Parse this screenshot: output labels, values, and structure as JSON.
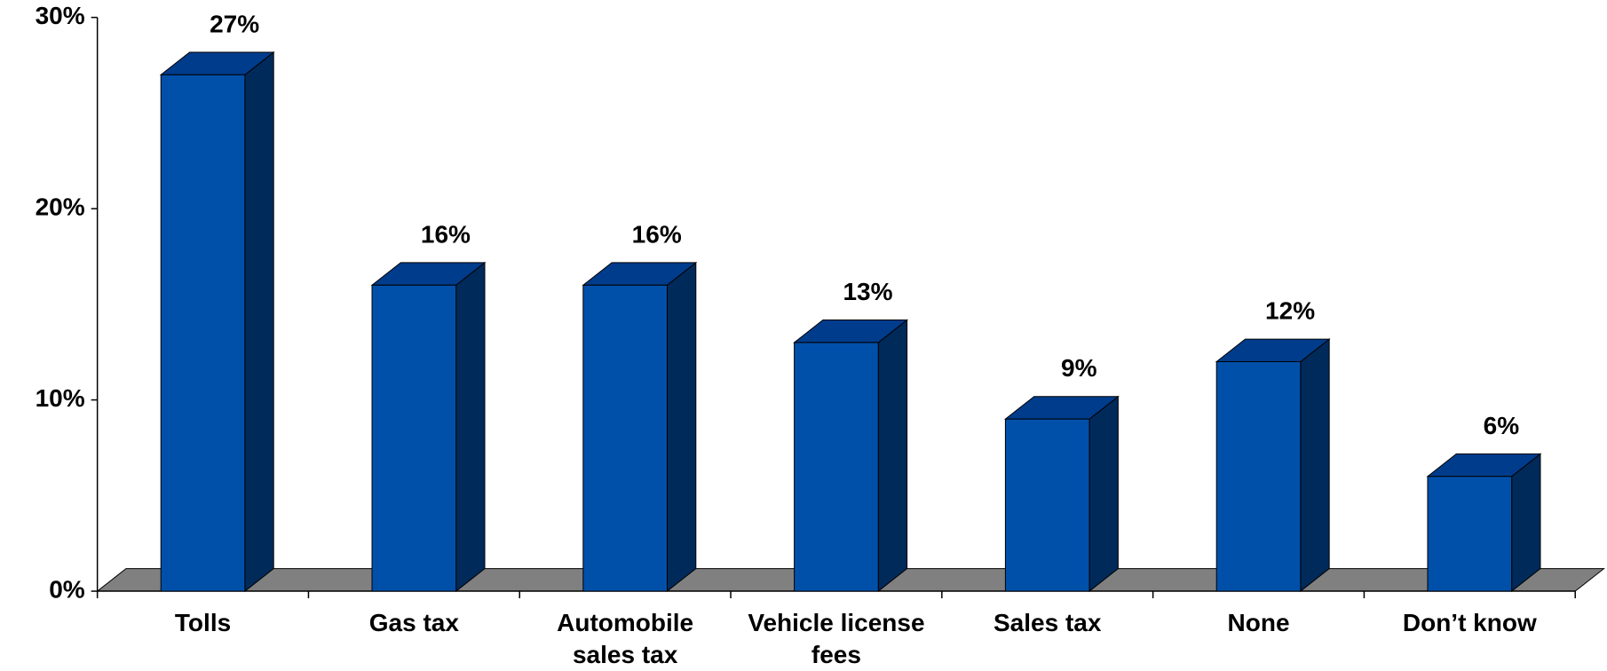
{
  "chart_data": {
    "type": "bar3d",
    "categories": [
      "Tolls",
      "Gas tax",
      "Automobile sales tax",
      "Vehicle license fees",
      "Sales tax",
      "None",
      "Don’t know"
    ],
    "values": [
      27,
      16,
      16,
      13,
      9,
      12,
      6
    ],
    "value_labels": [
      "27%",
      "16%",
      "16%",
      "13%",
      "9%",
      "12%",
      "6%"
    ],
    "color": "#0050aa",
    "ylim": [
      0,
      30
    ],
    "yticks": [
      {
        "value": 0,
        "label": "0%"
      },
      {
        "value": 10,
        "label": "10%"
      },
      {
        "value": 20,
        "label": "20%"
      },
      {
        "value": 30,
        "label": "30%"
      }
    ]
  }
}
